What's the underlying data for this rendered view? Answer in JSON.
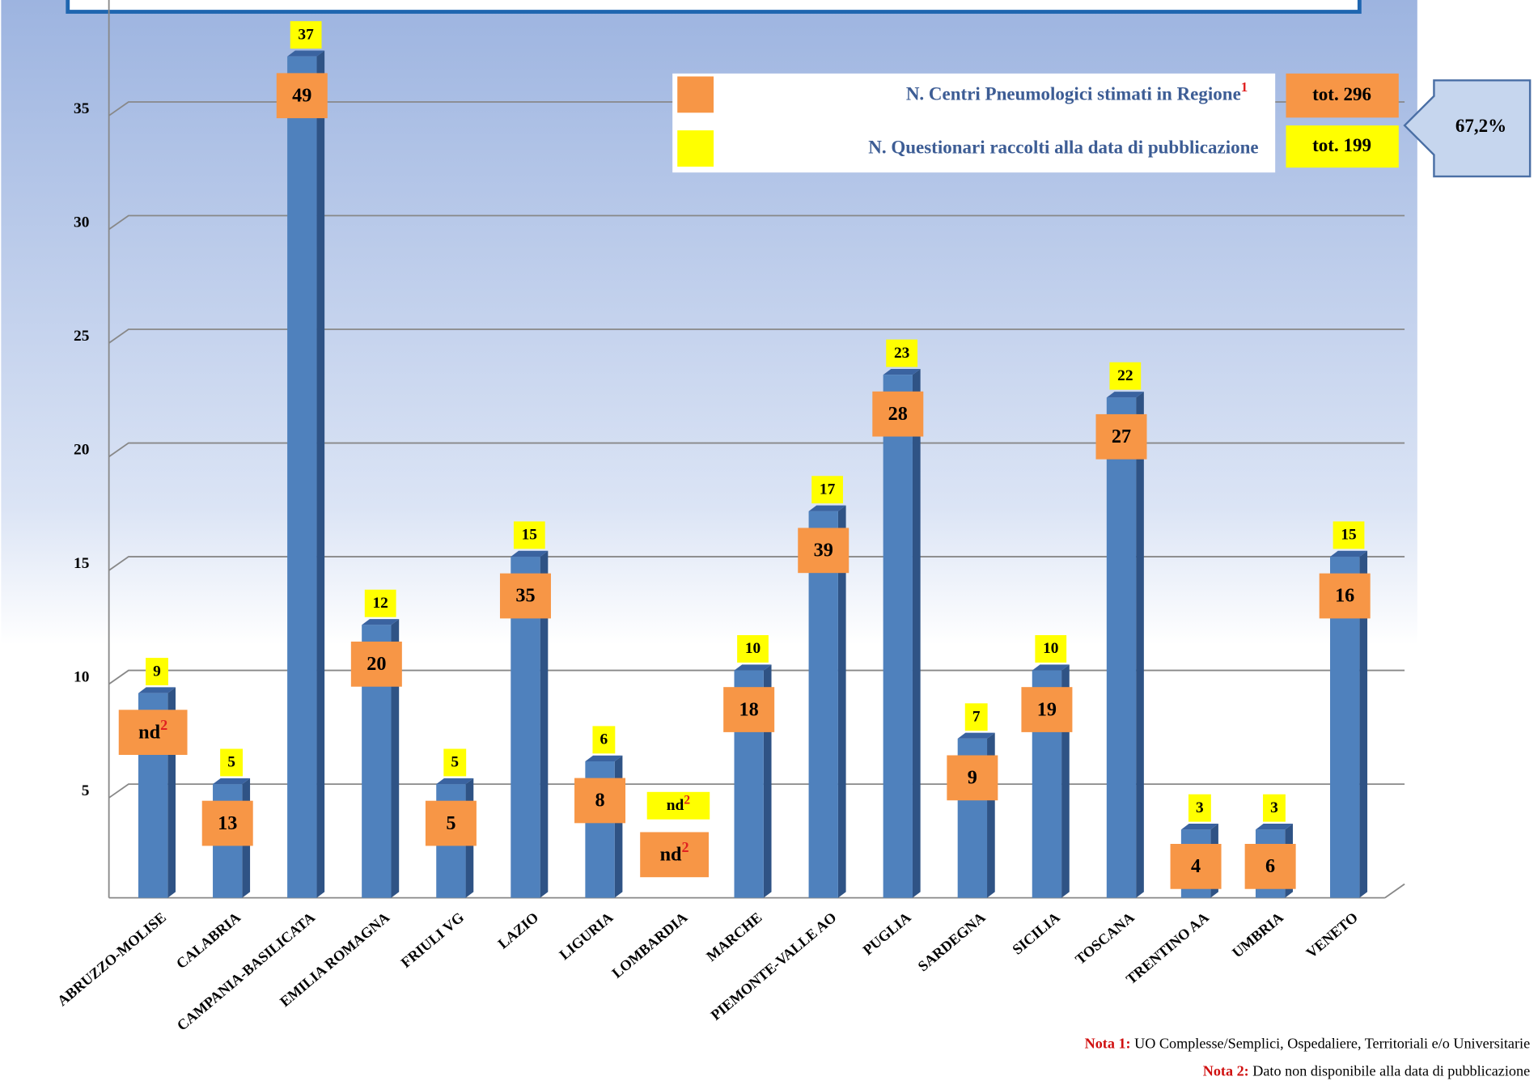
{
  "chart_data": {
    "type": "bar",
    "categories": [
      "ABRUZZO-MOLISE",
      "CALABRIA",
      "CAMPANIA-BASILICATA",
      "EMILIA ROMAGNA",
      "FRIULI VG",
      "LAZIO",
      "LIGURIA",
      "LOMBARDIA",
      "MARCHE",
      "PIEMONTE-VALLE AO",
      "PUGLIA",
      "SARDEGNA",
      "SICILIA",
      "TOSCANA",
      "TRENTINO AA",
      "UMBRIA",
      "VENETO"
    ],
    "series": [
      {
        "name": "N. Questionari raccolti alla data di pubblicazione",
        "color": "#ffff00",
        "bar_color": "#4f81bd",
        "values": [
          9,
          5,
          37,
          12,
          5,
          15,
          6,
          null,
          10,
          17,
          23,
          7,
          10,
          22,
          3,
          3,
          15
        ],
        "value_labels": [
          "9",
          "5",
          "37",
          "12",
          "5",
          "15",
          "6",
          "nd",
          "10",
          "17",
          "23",
          "7",
          "10",
          "22",
          "3",
          "3",
          "15"
        ],
        "total": {
          "value": 199,
          "label": "tot. 199"
        }
      },
      {
        "name": "N. Centri Pneumologici stimati in Regione",
        "color": "#f79646",
        "values": [
          null,
          13,
          49,
          20,
          5,
          35,
          8,
          null,
          18,
          39,
          28,
          9,
          19,
          27,
          4,
          6,
          16
        ],
        "value_labels": [
          "nd",
          "13",
          "49",
          "20",
          "5",
          "35",
          "8",
          "nd",
          "18",
          "39",
          "28",
          "9",
          "19",
          "27",
          "4",
          "6",
          "16"
        ],
        "total": {
          "value": 296,
          "label": "tot. 296"
        }
      }
    ],
    "legend_superscript": "1",
    "nd_superscript": "2",
    "ratio": {
      "value": 67.2,
      "label": "67,2%"
    },
    "ylim": [
      0,
      40
    ],
    "yticks": [
      5,
      10,
      15,
      20,
      25,
      30,
      35
    ],
    "grid": true,
    "notes": [
      {
        "marker": "Nota 1:",
        "text": " UO Complesse/Semplici, Ospedaliere, Territoriali  e/o Universitarie"
      },
      {
        "marker": "Nota 2:",
        "text": " Dato non disponibile alla data di pubblicazione"
      }
    ]
  }
}
